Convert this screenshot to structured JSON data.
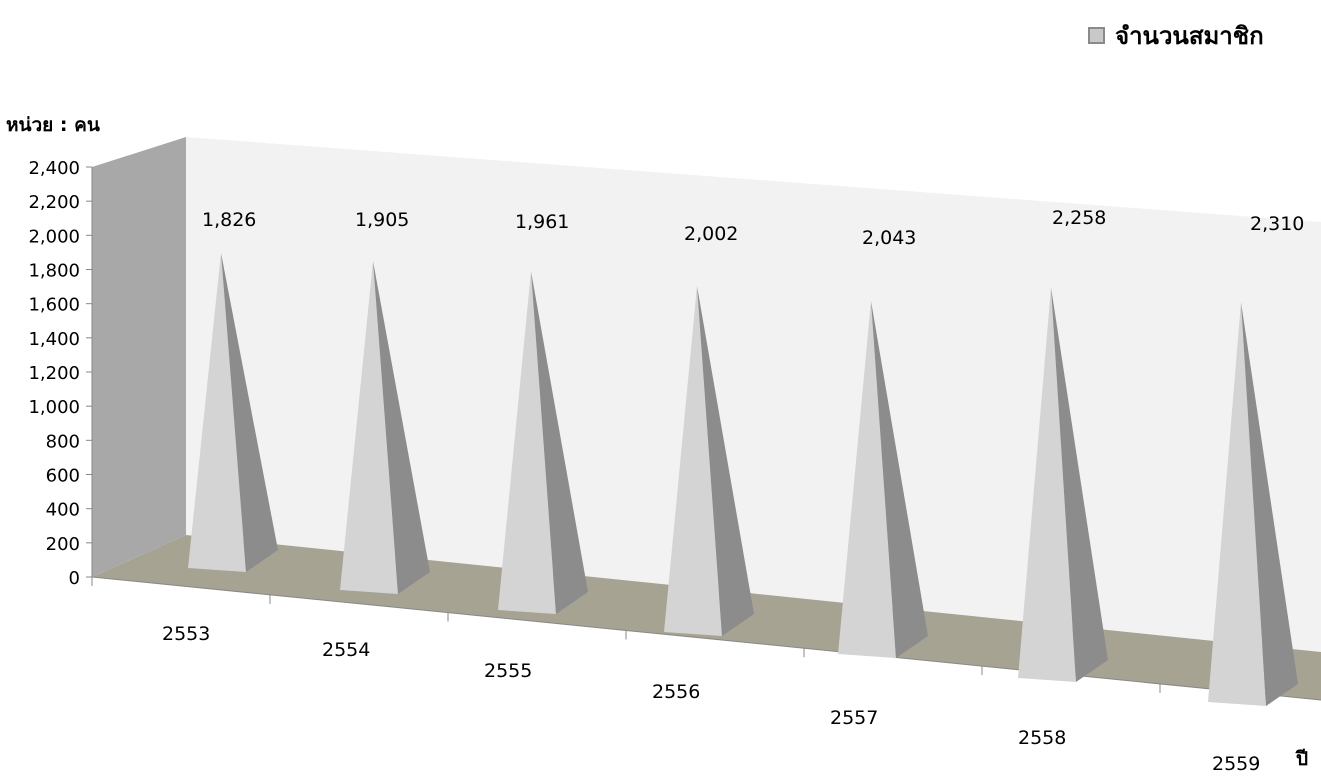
{
  "legend": {
    "label": "จำนวนสมาชิก"
  },
  "unit_label": "หน่วย : คน",
  "xaxis_title": "ปี",
  "colors": {
    "pyramid_light": "#d4d4d4",
    "pyramid_dark": "#8c8c8c",
    "floor": "#a6a392",
    "left_wall": "#a8a8a8",
    "back_wall": "#f2f2f2"
  },
  "chart_data": {
    "type": "bar",
    "style": "3d-pyramid",
    "categories": [
      "2553",
      "2554",
      "2555",
      "2556",
      "2557",
      "2558",
      "2559"
    ],
    "series": [
      {
        "name": "จำนวนสมาชิก",
        "values": [
          1826,
          1905,
          1961,
          2002,
          2043,
          2258,
          2310
        ]
      }
    ],
    "data_labels": [
      "1,826",
      "1,905",
      "1,961",
      "2,002",
      "2,043",
      "2,258",
      "2,310"
    ],
    "yticks": [
      "0",
      "200",
      "400",
      "600",
      "800",
      "1,000",
      "1,200",
      "1,400",
      "1,600",
      "1,800",
      "2,000",
      "2,200",
      "2,400"
    ],
    "ylim": [
      0,
      2400
    ],
    "legend_position": "top-right",
    "grid": false
  }
}
